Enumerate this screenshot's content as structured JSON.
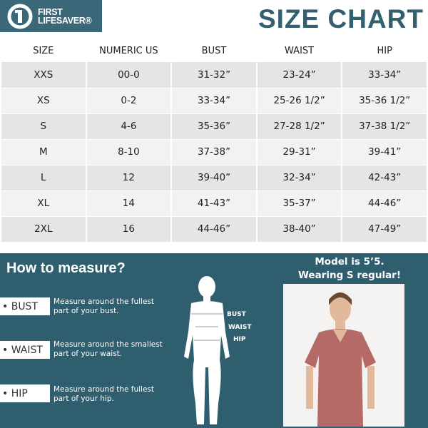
{
  "brand": {
    "name_line1": "FIRST",
    "name_line2": "LIFESAVER®"
  },
  "title": "SIZE CHART",
  "table": {
    "headers": [
      "SIZE",
      "NUMERIC US",
      "BUST",
      "WAIST",
      "HIP"
    ],
    "rows": [
      [
        "XXS",
        "00-0",
        "31-32”",
        "23-24”",
        "33-34”"
      ],
      [
        "XS",
        "0-2",
        "33-34”",
        "25-26 1/2”",
        "35-36 1/2”"
      ],
      [
        "S",
        "4-6",
        "35-36”",
        "27-28 1/2”",
        "37-38 1/2”"
      ],
      [
        "M",
        "8-10",
        "37-38”",
        "29-31”",
        "39-41”"
      ],
      [
        "L",
        "12",
        "39-40”",
        "32-34”",
        "42-43”"
      ],
      [
        "XL",
        "14",
        "41-43”",
        "35-37”",
        "44-46”"
      ],
      [
        "2XL",
        "16",
        "44-46”",
        "38-40”",
        "47-49”"
      ]
    ]
  },
  "measure": {
    "heading": "How to measure?",
    "items": [
      {
        "label": "• BUST",
        "desc_line1": "Measure around the fullest",
        "desc_line2": "part of your bust."
      },
      {
        "label": "• WAIST",
        "desc_line1": "Measure around the smallest",
        "desc_line2": "part of your waist."
      },
      {
        "label": "• HIP",
        "desc_line1": "Measure around the fullest",
        "desc_line2": "part of your hip."
      }
    ],
    "figure_labels": [
      "BUST",
      "WAIST",
      "HIP"
    ]
  },
  "model": {
    "line1": "Model is 5’5.",
    "line2": "Wearing S regular!"
  },
  "colors": {
    "teal": "#2f5e6e",
    "scrub": "#b56a67"
  }
}
